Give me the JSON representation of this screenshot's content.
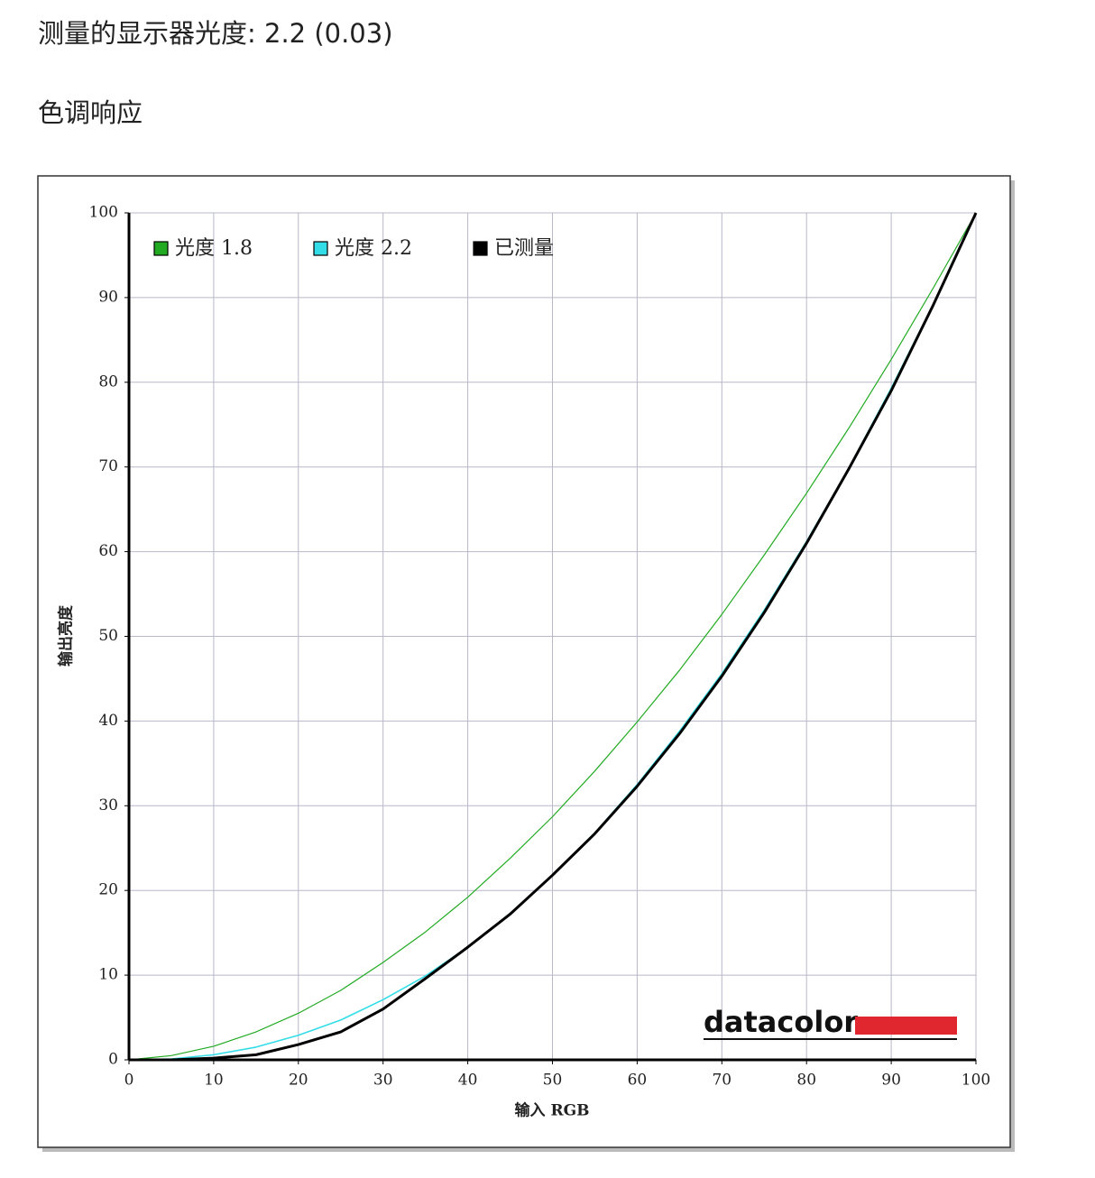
{
  "header": {
    "title": "测量的显示器光度: 2.2 (0.03)",
    "section": "色调响应"
  },
  "chart_data": {
    "type": "line",
    "xlabel": "输入 RGB",
    "ylabel": "输出亮度",
    "brand": "datacolor",
    "x": [
      0,
      5,
      10,
      15,
      20,
      25,
      30,
      35,
      40,
      45,
      50,
      55,
      60,
      65,
      70,
      75,
      80,
      85,
      90,
      95,
      100
    ],
    "series": [
      {
        "name": "光度 1.8",
        "color": "#22aa22",
        "width": 1.2,
        "values": [
          0,
          0.5,
          1.6,
          3.3,
          5.5,
          8.2,
          11.5,
          15.1,
          19.2,
          23.8,
          28.7,
          34.1,
          39.9,
          46.0,
          52.6,
          59.6,
          66.9,
          74.6,
          82.7,
          91.2,
          100
        ]
      },
      {
        "name": "光度 2.2",
        "color": "#33dde8",
        "width": 1.6,
        "values": [
          0,
          0.1,
          0.6,
          1.5,
          2.9,
          4.7,
          7.1,
          9.9,
          13.3,
          17.3,
          21.8,
          26.8,
          32.5,
          38.8,
          45.6,
          53.1,
          61.2,
          69.9,
          79.3,
          89.3,
          100
        ]
      },
      {
        "name": "已测量",
        "color": "#000000",
        "width": 3,
        "values": [
          0,
          0,
          0.2,
          0.6,
          1.8,
          3.3,
          6,
          9.6,
          13.3,
          17.2,
          21.8,
          26.7,
          32.3,
          38.5,
          45.3,
          52.8,
          61,
          69.8,
          79,
          89.2,
          100
        ]
      }
    ],
    "xlim": [
      0,
      100
    ],
    "ylim": [
      0,
      100
    ],
    "xticks": [
      0,
      10,
      20,
      30,
      40,
      50,
      60,
      70,
      80,
      90,
      100
    ],
    "yticks": [
      0,
      10,
      20,
      30,
      40,
      50,
      60,
      70,
      80,
      90,
      100
    ],
    "grid": true,
    "legend": "upper-left"
  }
}
